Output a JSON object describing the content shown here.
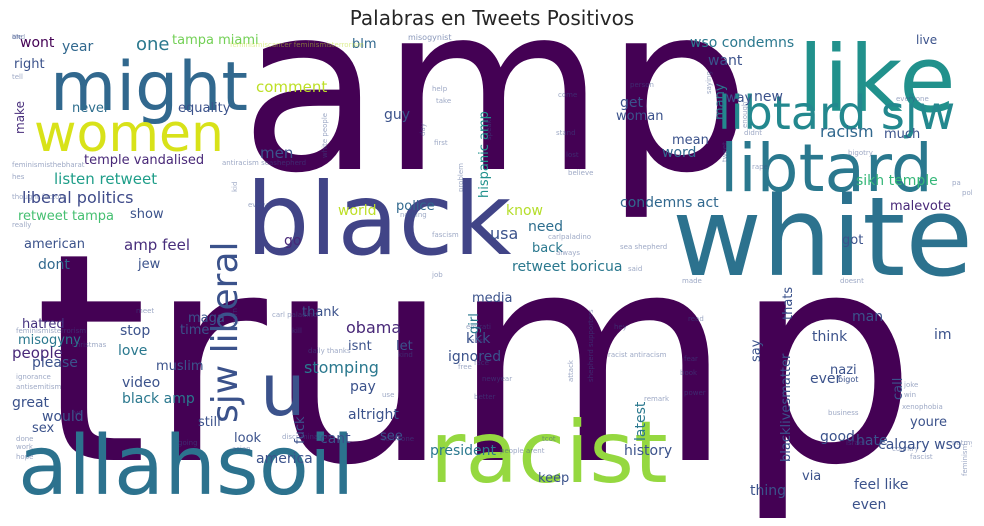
{
  "title": "Palabras en Tweets Positivos",
  "words": [
    {
      "text": "amp",
      "color": "#440154"
    },
    {
      "text": "trump",
      "color": "#440154"
    },
    {
      "text": "white",
      "color": "#2c728e"
    },
    {
      "text": "black",
      "color": "#414487"
    },
    {
      "text": "like",
      "color": "#21918c"
    },
    {
      "text": "might",
      "color": "#31688e"
    },
    {
      "text": "women",
      "color": "#d8e219"
    },
    {
      "text": "libtard",
      "color": "#2a788e"
    },
    {
      "text": "libtard sjw",
      "color": "#23888e"
    },
    {
      "text": "allahsoil",
      "color": "#2c728e"
    },
    {
      "text": "racist",
      "color": "#95d840"
    },
    {
      "text": "sjw liberal",
      "color": "#3b528b"
    },
    {
      "text": "u",
      "color": "#3b528b"
    },
    {
      "text": "wont",
      "color": "#440154"
    },
    {
      "text": "year",
      "color": "#31688e"
    },
    {
      "text": "one",
      "color": "#2a788e"
    },
    {
      "text": "tampa miami",
      "color": "#73d056"
    },
    {
      "text": "right",
      "color": "#3b528b"
    },
    {
      "text": "make",
      "color": "#472d7b"
    },
    {
      "text": "never",
      "color": "#2e6e8e"
    },
    {
      "text": "equality",
      "color": "#3b528b"
    },
    {
      "text": "comment",
      "color": "#bddf26"
    },
    {
      "text": "blm",
      "color": "#31688e"
    },
    {
      "text": "guy",
      "color": "#3b528b"
    },
    {
      "text": "temple vandalised",
      "color": "#482878"
    },
    {
      "text": "listen retweet",
      "color": "#1f9e89"
    },
    {
      "text": "liberal politics",
      "color": "#3e4a89"
    },
    {
      "text": "retweet tampa",
      "color": "#44bf70"
    },
    {
      "text": "show",
      "color": "#3b528b"
    },
    {
      "text": "american",
      "color": "#3b528b"
    },
    {
      "text": "amp feel",
      "color": "#472d7b"
    },
    {
      "text": "dont",
      "color": "#31688e"
    },
    {
      "text": "jew",
      "color": "#3b528b"
    },
    {
      "text": "men",
      "color": "#3b528b"
    },
    {
      "text": "go",
      "color": "#482878"
    },
    {
      "text": "world",
      "color": "#bddf26"
    },
    {
      "text": "police",
      "color": "#31688e"
    },
    {
      "text": "know",
      "color": "#b5de2b"
    },
    {
      "text": "need",
      "color": "#2e6e8e"
    },
    {
      "text": "usa",
      "color": "#3b528b"
    },
    {
      "text": "back",
      "color": "#2a788e"
    },
    {
      "text": "hispanic amp",
      "color": "#21918c"
    },
    {
      "text": "get",
      "color": "#3b528b"
    },
    {
      "text": "woman",
      "color": "#3b528b"
    },
    {
      "text": "many",
      "color": "#2a788e"
    },
    {
      "text": "wso condemns",
      "color": "#2a788e"
    },
    {
      "text": "want",
      "color": "#3b528b"
    },
    {
      "text": "way",
      "color": "#3b528b"
    },
    {
      "text": "new",
      "color": "#3b528b"
    },
    {
      "text": "live",
      "color": "#3b528b"
    },
    {
      "text": "racism",
      "color": "#31688e"
    },
    {
      "text": "much",
      "color": "#3b528b"
    },
    {
      "text": "mean",
      "color": "#3b528b"
    },
    {
      "text": "word",
      "color": "#31688e"
    },
    {
      "text": "sikh temple",
      "color": "#35b779"
    },
    {
      "text": "condemns act",
      "color": "#31688e"
    },
    {
      "text": "malevote",
      "color": "#482878"
    },
    {
      "text": "thats",
      "color": "#3b528b"
    },
    {
      "text": "got",
      "color": "#3b528b"
    },
    {
      "text": "race",
      "color": "#3b528b"
    },
    {
      "text": "retweet boricua",
      "color": "#2a788e"
    },
    {
      "text": "hatred",
      "color": "#46337f"
    },
    {
      "text": "maga",
      "color": "#3b528b"
    },
    {
      "text": "misogyny",
      "color": "#2a788e"
    },
    {
      "text": "time",
      "color": "#3b528b"
    },
    {
      "text": "stop",
      "color": "#3b528b"
    },
    {
      "text": "people",
      "color": "#482878"
    },
    {
      "text": "love",
      "color": "#2a788e"
    },
    {
      "text": "muslim",
      "color": "#3b528b"
    },
    {
      "text": "please",
      "color": "#3b528b"
    },
    {
      "text": "video",
      "color": "#3b528b"
    },
    {
      "text": "black amp",
      "color": "#2a788e"
    },
    {
      "text": "great",
      "color": "#3b528b"
    },
    {
      "text": "would",
      "color": "#3b528b"
    },
    {
      "text": "sex",
      "color": "#3b528b"
    },
    {
      "text": "still",
      "color": "#3b528b"
    },
    {
      "text": "look",
      "color": "#3b528b"
    },
    {
      "text": "thank",
      "color": "#3b528b"
    },
    {
      "text": "obama",
      "color": "#482878"
    },
    {
      "text": "stomping",
      "color": "#2a788e"
    },
    {
      "text": "isnt",
      "color": "#3b528b"
    },
    {
      "text": "pay",
      "color": "#3b528b"
    },
    {
      "text": "let",
      "color": "#3b528b"
    },
    {
      "text": "kkk",
      "color": "#3b528b"
    },
    {
      "text": "media",
      "color": "#3b528b"
    },
    {
      "text": "girl",
      "color": "#2a788e"
    },
    {
      "text": "ignored",
      "color": "#3b528b"
    },
    {
      "text": "altright",
      "color": "#3b528b"
    },
    {
      "text": "fuck",
      "color": "#3b528b"
    },
    {
      "text": "cant",
      "color": "#3b528b"
    },
    {
      "text": "america",
      "color": "#3b528b"
    },
    {
      "text": "see",
      "color": "#3b528b"
    },
    {
      "text": "president",
      "color": "#2a788e"
    },
    {
      "text": "keep",
      "color": "#3b528b"
    },
    {
      "text": "history",
      "color": "#3b528b"
    },
    {
      "text": "latest",
      "color": "#2a788e"
    },
    {
      "text": "say",
      "color": "#3b528b"
    },
    {
      "text": "blacklivesmatter",
      "color": "#3b528b"
    },
    {
      "text": "thing",
      "color": "#3b528b"
    },
    {
      "text": "via",
      "color": "#3b528b"
    },
    {
      "text": "think",
      "color": "#3b528b"
    },
    {
      "text": "nazi",
      "color": "#3b528b"
    },
    {
      "text": "call",
      "color": "#3b528b"
    },
    {
      "text": "ever",
      "color": "#3b528b"
    },
    {
      "text": "im",
      "color": "#3b528b"
    },
    {
      "text": "man",
      "color": "#3b528b"
    },
    {
      "text": "good",
      "color": "#3b528b"
    },
    {
      "text": "hate",
      "color": "#3b528b"
    },
    {
      "text": "feel like",
      "color": "#3b528b"
    },
    {
      "text": "even",
      "color": "#3b528b"
    },
    {
      "text": "calgary wso",
      "color": "#3b528b"
    },
    {
      "text": "youre",
      "color": "#3b528b"
    },
    {
      "text": "bigot",
      "color": "#3b528b"
    },
    {
      "text": "misogynist",
      "color": "#3b528b"
    },
    {
      "text": "feminismiscancer feminismisterrorism",
      "color": "#bddf26"
    },
    {
      "text": "tell",
      "color": "#3b528b"
    },
    {
      "text": "help",
      "color": "#3b528b"
    },
    {
      "text": "speak",
      "color": "#3b528b"
    },
    {
      "text": "person",
      "color": "#3b528b"
    },
    {
      "text": "saying",
      "color": "#3b528b"
    },
    {
      "text": "enough",
      "color": "#3b528b"
    },
    {
      "text": "everyone",
      "color": "#3b528b"
    },
    {
      "text": "take",
      "color": "#3b528b"
    },
    {
      "text": "come",
      "color": "#3b528b"
    },
    {
      "text": "day",
      "color": "#3b528b"
    },
    {
      "text": "didnt",
      "color": "#3b528b"
    },
    {
      "text": "stand",
      "color": "#3b528b"
    },
    {
      "text": "first",
      "color": "#3b528b"
    },
    {
      "text": "tweet",
      "color": "#3b528b"
    },
    {
      "text": "lost",
      "color": "#3b528b"
    },
    {
      "text": "bigotry",
      "color": "#3b528b"
    },
    {
      "text": "antiracism seashepherd",
      "color": "#3b528b"
    },
    {
      "text": "rape",
      "color": "#3b528b"
    },
    {
      "text": "kid",
      "color": "#3b528b"
    },
    {
      "text": "feminismisthebharat",
      "color": "#3b528b"
    },
    {
      "text": "problem",
      "color": "#3b528b"
    },
    {
      "text": "believe",
      "color": "#3b528b"
    },
    {
      "text": "hes",
      "color": "#3b528b"
    },
    {
      "text": "thought factory",
      "color": "#3b528b"
    },
    {
      "text": "really",
      "color": "#3b528b"
    },
    {
      "text": "every",
      "color": "#3b528b"
    },
    {
      "text": "nothing",
      "color": "#3b528b"
    },
    {
      "text": "carlpaladino",
      "color": "#3b528b"
    },
    {
      "text": "fascism",
      "color": "#3b528b"
    },
    {
      "text": "always",
      "color": "#3b528b"
    },
    {
      "text": "sea shepherd",
      "color": "#3b528b"
    },
    {
      "text": "said",
      "color": "#3b528b"
    },
    {
      "text": "job",
      "color": "#3b528b"
    },
    {
      "text": "made",
      "color": "#3b528b"
    },
    {
      "text": "doesnt",
      "color": "#3b528b"
    },
    {
      "text": "carl paladino",
      "color": "#3b528b"
    },
    {
      "text": "porn",
      "color": "#3b528b"
    },
    {
      "text": "feminismisterrorism",
      "color": "#3b528b"
    },
    {
      "text": "christmas",
      "color": "#3b528b"
    },
    {
      "text": "read",
      "color": "#3b528b"
    },
    {
      "text": "hey",
      "color": "#3b528b"
    },
    {
      "text": "kill",
      "color": "#3b528b"
    },
    {
      "text": "emirati",
      "color": "#3b528b"
    },
    {
      "text": "must",
      "color": "#3b528b"
    },
    {
      "text": "daily thanks",
      "color": "#3b528b"
    },
    {
      "text": "kind",
      "color": "#3b528b"
    },
    {
      "text": "face",
      "color": "#3b528b"
    },
    {
      "text": "free",
      "color": "#3b528b"
    },
    {
      "text": "fear",
      "color": "#3b528b"
    },
    {
      "text": "attack",
      "color": "#3b528b"
    },
    {
      "text": "shepherd supporters",
      "color": "#3b528b"
    },
    {
      "text": "racist antiracism",
      "color": "#3b528b"
    },
    {
      "text": "book",
      "color": "#3b528b"
    },
    {
      "text": "joke",
      "color": "#3b528b"
    },
    {
      "text": "win",
      "color": "#3b528b"
    },
    {
      "text": "xenophobia",
      "color": "#3b528b"
    },
    {
      "text": "ignorance",
      "color": "#3b528b"
    },
    {
      "text": "antisemitism",
      "color": "#3b528b"
    },
    {
      "text": "newyear",
      "color": "#3b528b"
    },
    {
      "text": "use",
      "color": "#3b528b"
    },
    {
      "text": "better",
      "color": "#3b528b"
    },
    {
      "text": "business",
      "color": "#3b528b"
    },
    {
      "text": "remark",
      "color": "#3b528b"
    },
    {
      "text": "power",
      "color": "#3b528b"
    },
    {
      "text": "ive",
      "color": "#3b528b"
    },
    {
      "text": "done",
      "color": "#3b528b"
    },
    {
      "text": "discrimination",
      "color": "#3b528b"
    },
    {
      "text": "someone",
      "color": "#3b528b"
    },
    {
      "text": "tcot",
      "color": "#3b528b"
    },
    {
      "text": "people arent",
      "color": "#3b528b"
    },
    {
      "text": "israel",
      "color": "#3b528b"
    },
    {
      "text": "notmypresident",
      "color": "#3b528b"
    },
    {
      "text": "work",
      "color": "#3b528b"
    },
    {
      "text": "going",
      "color": "#3b528b"
    },
    {
      "text": "asian",
      "color": "#3b528b"
    },
    {
      "text": "country",
      "color": "#3b528b"
    },
    {
      "text": "fascist",
      "color": "#3b528b"
    },
    {
      "text": "feminism",
      "color": "#3b528b"
    },
    {
      "text": "hope",
      "color": "#3b528b"
    },
    {
      "text": "white people",
      "color": "#3b528b"
    },
    {
      "text": "meet",
      "color": "#3b528b"
    },
    {
      "text": "pa",
      "color": "#3b528b"
    },
    {
      "text": "pol",
      "color": "#3b528b"
    },
    {
      "text": "and",
      "color": "#3b528b"
    },
    {
      "text": "ok",
      "color": "#3b528b"
    },
    {
      "text": "life",
      "color": "#3b528b"
    }
  ]
}
